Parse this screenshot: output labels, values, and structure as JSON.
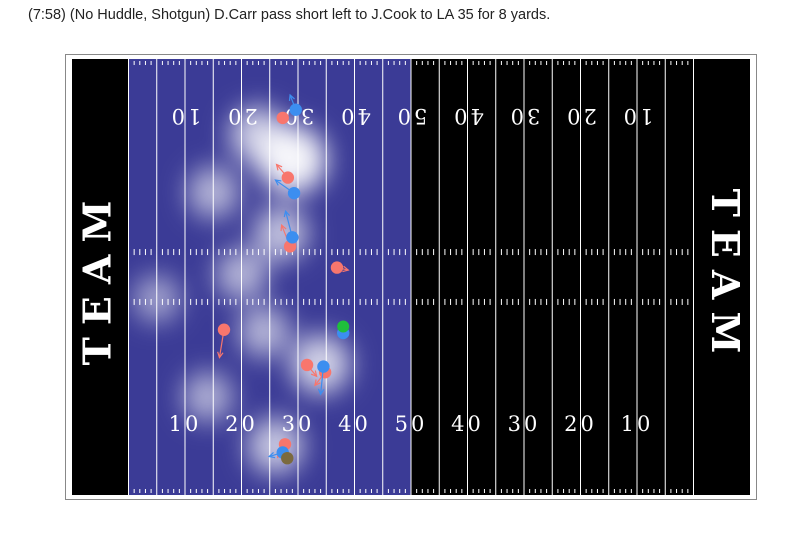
{
  "play": {
    "description": "(7:58) (No Huddle, Shotgun) D.Carr pass short left to J.Cook to LA 35 for 8 yards."
  },
  "colors": {
    "field": "#000000",
    "line": "#ffffff",
    "heat_low": "#3b3b96",
    "heat_high": "#ffffff",
    "offense": "#f8766d",
    "defense": "#3c8ef0",
    "football": "#1fbf3b",
    "ball_carrier": "#7b6a3f"
  },
  "chart_data": {
    "type": "scatter",
    "endzones": {
      "left": "TEAM",
      "right": "TEAM"
    },
    "yard_numbers": [
      "10",
      "20",
      "30",
      "40",
      "50",
      "40",
      "30",
      "20",
      "10"
    ],
    "x_range_yards": [
      0,
      120
    ],
    "y_range_yards": [
      0,
      53.3
    ],
    "heatmap_extent_yards": [
      10,
      60
    ],
    "heatmap_hotspots": [
      {
        "x": 39,
        "y": 41,
        "intensity": 1.0
      },
      {
        "x": 33,
        "y": 44,
        "intensity": 0.65
      },
      {
        "x": 37,
        "y": 32,
        "intensity": 0.55
      },
      {
        "x": 25,
        "y": 37,
        "intensity": 0.45
      },
      {
        "x": 30,
        "y": 27,
        "intensity": 0.45
      },
      {
        "x": 44,
        "y": 16,
        "intensity": 0.7
      },
      {
        "x": 36,
        "y": 6,
        "intensity": 0.6
      },
      {
        "x": 24,
        "y": 12,
        "intensity": 0.4
      },
      {
        "x": 15,
        "y": 24,
        "intensity": 0.3
      },
      {
        "x": 34,
        "y": 20,
        "intensity": 0.45
      }
    ],
    "series": [
      {
        "team": "offense",
        "points": [
          {
            "x": 37.3,
            "y": 46.1,
            "dx": 0,
            "dy": 0
          },
          {
            "x": 38.2,
            "y": 38.8,
            "dx": -2.0,
            "dy": 1.6
          },
          {
            "x": 38.6,
            "y": 30.4,
            "dx": -1.5,
            "dy": 2.6
          },
          {
            "x": 46.9,
            "y": 27.8,
            "dx": 2.0,
            "dy": -0.3
          },
          {
            "x": 26.9,
            "y": 20.2,
            "dx": -0.8,
            "dy": -3.4
          },
          {
            "x": 41.6,
            "y": 15.9,
            "dx": 1.7,
            "dy": -1.4
          },
          {
            "x": 44.8,
            "y": 15.0,
            "dx": -1.8,
            "dy": -1.6
          },
          {
            "x": 37.7,
            "y": 6.2,
            "dx": -1.3,
            "dy": -1.6
          }
        ]
      },
      {
        "team": "defense",
        "points": [
          {
            "x": 39.6,
            "y": 47.1,
            "dx": -1.0,
            "dy": 1.8
          },
          {
            "x": 39.3,
            "y": 36.9,
            "dx": -3.3,
            "dy": 1.6
          },
          {
            "x": 39.0,
            "y": 31.5,
            "dx": -1.2,
            "dy": 3.2
          },
          {
            "x": 48.0,
            "y": 19.8,
            "dx": 0,
            "dy": 0
          },
          {
            "x": 44.5,
            "y": 15.7,
            "dx": -0.5,
            "dy": -3.4
          },
          {
            "x": 37.3,
            "y": 5.2,
            "dx": -2.4,
            "dy": -0.5
          }
        ]
      },
      {
        "team": "football",
        "points": [
          {
            "x": 48.0,
            "y": 20.6,
            "dx": 0,
            "dy": 0
          }
        ]
      },
      {
        "team": "ball_carrier",
        "points": [
          {
            "x": 38.1,
            "y": 4.5,
            "dx": 0,
            "dy": 0
          }
        ]
      }
    ]
  }
}
